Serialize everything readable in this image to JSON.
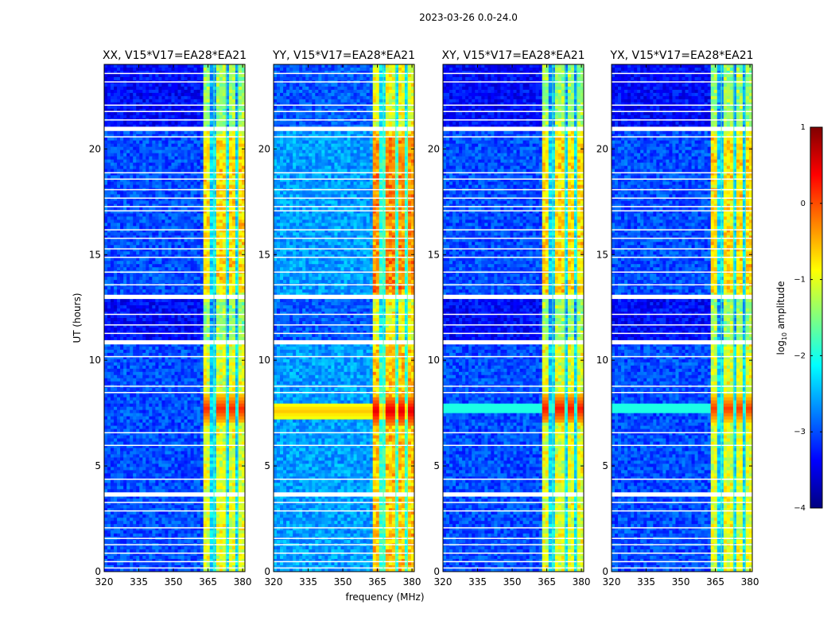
{
  "figure": {
    "suptitle": "2023-03-26 0.0-24.0",
    "ylabel": "UT (hours)",
    "xlabel": "frequency (MHz)"
  },
  "chart_data": {
    "type": "heatmap",
    "title": "2023-03-26 0.0-24.0",
    "xlabel": "frequency (MHz)",
    "ylabel": "UT (hours)",
    "xlim": [
      320,
      381
    ],
    "ylim": [
      0,
      24
    ],
    "x_ticks": [
      320,
      335,
      350,
      365,
      380
    ],
    "y_ticks": [
      0,
      5,
      10,
      15,
      20
    ],
    "bright_channel_centers_mhz": [
      364.5,
      370.5,
      375.5,
      380
    ],
    "blanked_time_ranges_hours": [
      [
        20.85,
        21.05
      ],
      [
        12.9,
        13.1
      ],
      [
        10.75,
        10.95
      ],
      [
        3.55,
        3.75
      ]
    ],
    "panels": [
      {
        "title": "XX, V15*V17=EA28*EA21",
        "polarization": "XX",
        "peak_time_hours": 7.7,
        "peak_log10_amplitude": 0.2,
        "background_log10_amplitude": -3.0,
        "rfi_band_7_8_hours": "channels only"
      },
      {
        "title": "YY, V15*V17=EA28*EA21",
        "polarization": "YY",
        "peak_time_hours": 7.6,
        "peak_log10_amplitude": 0.5,
        "background_log10_amplitude": -2.6,
        "rfi_band_7_8_hours": "full band"
      },
      {
        "title": "XY, V15*V17=EA28*EA21",
        "polarization": "XY",
        "peak_time_hours": 7.7,
        "peak_log10_amplitude": 0.3,
        "background_log10_amplitude": -3.0,
        "rfi_band_7_8_hours": "weak full band"
      },
      {
        "title": "YX, V15*V17=EA28*EA21",
        "polarization": "YX",
        "peak_time_hours": 7.7,
        "peak_log10_amplitude": 0.1,
        "background_log10_amplitude": -3.0,
        "rfi_band_7_8_hours": "weak full band"
      }
    ],
    "colorbar": {
      "label_prefix": "log",
      "label_sub": "10",
      "label_suffix": " amplitude",
      "range": [
        -4,
        1
      ],
      "ticks": [
        1,
        0,
        -1,
        -2,
        -3,
        -4
      ],
      "tick_labels": [
        "1",
        "0",
        "−1",
        "−2",
        "−3",
        "−4"
      ],
      "colormap": "jet",
      "colors": [
        "#000080",
        "#0000ff",
        "#0080ff",
        "#00ffff",
        "#80ff80",
        "#ffff00",
        "#ff8000",
        "#ff0000",
        "#800000"
      ]
    }
  }
}
